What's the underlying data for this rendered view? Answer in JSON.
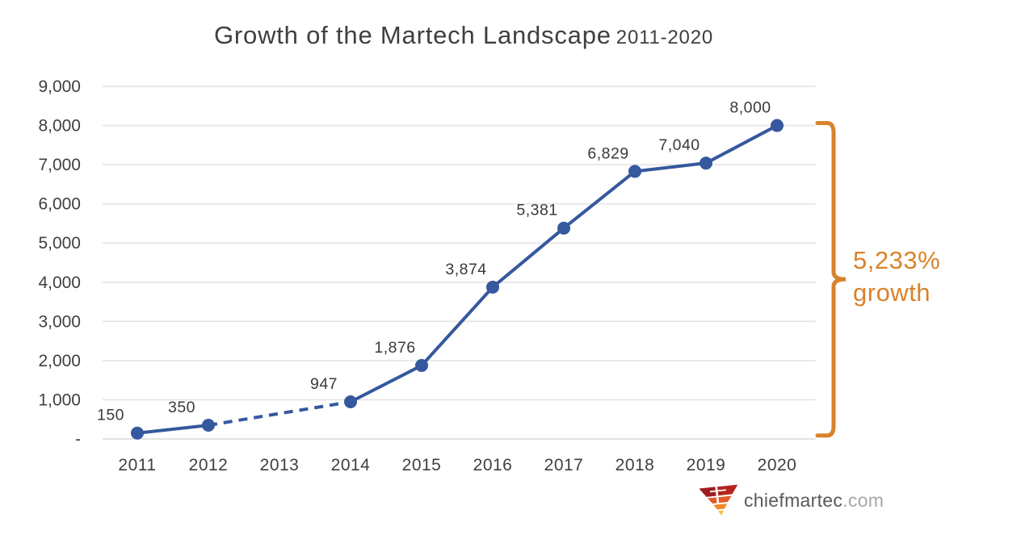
{
  "title": {
    "main": "Growth of the Martech Landscape",
    "period": "2011-2020"
  },
  "chart_data": {
    "type": "line",
    "title": "Growth of the Martech Landscape 2011-2020",
    "x": [
      2011,
      2012,
      2013,
      2014,
      2015,
      2016,
      2017,
      2018,
      2019,
      2020
    ],
    "series": [
      {
        "values": [
          150,
          350,
          null,
          947,
          1876,
          3874,
          5381,
          6829,
          7040,
          8000
        ],
        "point_labels": [
          "150",
          "350",
          "",
          "947",
          "1,876",
          "3,874",
          "5,381",
          "6,829",
          "7,040",
          "8,000"
        ]
      }
    ],
    "missing_x": [
      2013
    ],
    "dashed_rule": "segments bridging a missing year are dashed",
    "xlabel": "",
    "ylabel": "",
    "ylim": [
      0,
      9000
    ],
    "ytick_interval": 1000,
    "ytick_labels": [
      "-",
      "1,000",
      "2,000",
      "3,000",
      "4,000",
      "5,000",
      "6,000",
      "7,000",
      "8,000",
      "9,000"
    ],
    "grid": "horizontal",
    "legend": "none",
    "colors": {
      "line": "#35589e",
      "marker": "#35589e",
      "gridline": "#e4e4e4",
      "zero_line": "#d8d8d8",
      "tick_text": "#404040",
      "data_label_text": "#3a3a3a",
      "title_text": "#3f3f3f",
      "annotation": "#d9822b"
    },
    "annotation": {
      "value_text": "5,233%",
      "label_text": "growth",
      "bracket": "right curly brace spanning from 8,000 point down to 150 point"
    }
  },
  "branding": {
    "site_name": "chiefmartec",
    "site_tld": ".com",
    "logo_icon": "funnel-logo-icon",
    "logo_colors": {
      "red_dark": "#9c1d22",
      "red": "#c0291f",
      "orange_red": "#e05b25",
      "orange": "#f08a2a",
      "yellow": "#f5c040"
    }
  }
}
